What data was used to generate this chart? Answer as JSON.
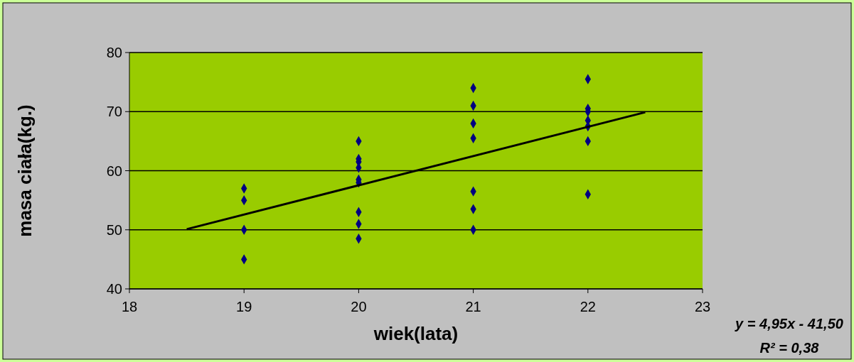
{
  "chart_data": {
    "type": "scatter",
    "xlabel": "wiek(lata)",
    "ylabel": "masa ciała(kg.)",
    "xlim": [
      18,
      23
    ],
    "xticks": [
      18,
      19,
      20,
      21,
      22,
      23
    ],
    "ylim": [
      40,
      80
    ],
    "yticks": [
      40,
      50,
      60,
      70,
      80
    ],
    "grid": "y",
    "series": [
      {
        "marker": "diamond",
        "color": "#000080",
        "x": [
          19,
          19,
          19,
          19,
          20,
          20,
          20,
          20,
          20,
          20,
          20,
          20,
          20,
          21,
          21,
          21,
          21,
          21,
          21,
          21,
          22,
          22,
          22,
          22,
          22,
          22,
          22
        ],
        "values": [
          57,
          55,
          50,
          45,
          65,
          62,
          61.5,
          60.5,
          58.5,
          58,
          53,
          51,
          48.5,
          74,
          71,
          68,
          65.5,
          56.5,
          53.5,
          50,
          75.5,
          70.5,
          70,
          68.5,
          67.5,
          65,
          56
        ]
      },
      {
        "type": "line",
        "color": "#000000",
        "x": [
          18.5,
          22.5
        ],
        "values": [
          50.1,
          69.9
        ],
        "line_style": "solid",
        "marker": "none"
      }
    ],
    "annotations": [
      "y = 4,95x - 41,50",
      "R² = 0,38"
    ]
  }
}
